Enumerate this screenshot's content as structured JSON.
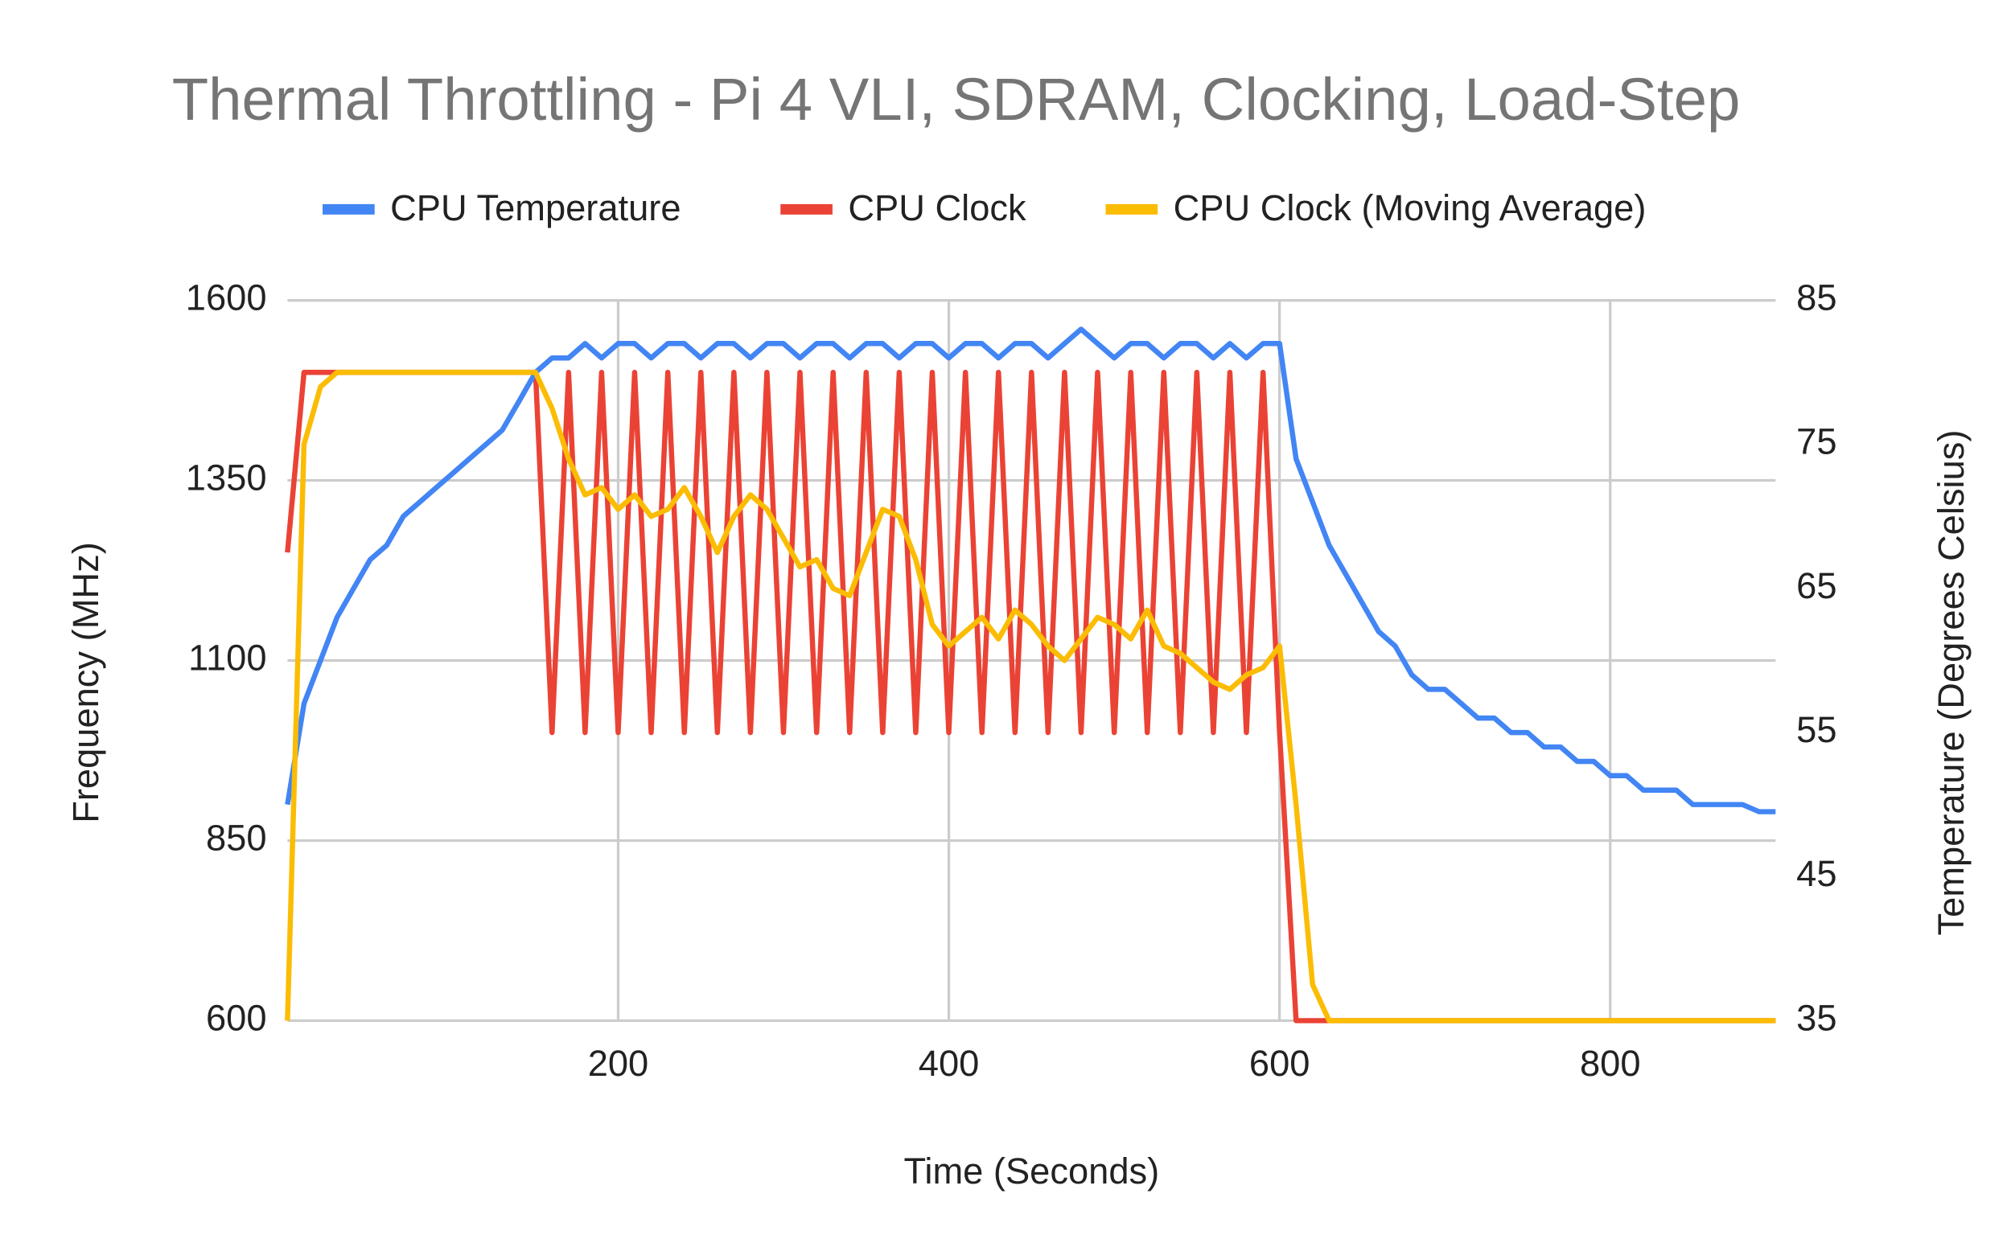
{
  "chart_data": {
    "type": "line",
    "title": "Thermal Throttling - Pi 4 VLI, SDRAM, Clocking, Load-Step",
    "xlabel": "Time (Seconds)",
    "ylabel": "Frequency (MHz)",
    "y2label": "Temperature (Degrees Celsius)",
    "xlim": [
      0,
      900
    ],
    "xticks": [
      200,
      400,
      600,
      800
    ],
    "ylim": [
      600,
      1600
    ],
    "yticks": [
      600,
      850,
      1100,
      1350,
      1600
    ],
    "y2lim": [
      35,
      85
    ],
    "y2ticks": [
      35,
      45,
      55,
      65,
      75,
      85
    ],
    "grid": true,
    "legend": "top",
    "x": [
      0,
      10,
      20,
      30,
      40,
      50,
      60,
      70,
      80,
      90,
      100,
      110,
      120,
      130,
      140,
      150,
      160,
      170,
      180,
      190,
      200,
      210,
      220,
      230,
      240,
      250,
      260,
      270,
      280,
      290,
      300,
      310,
      320,
      330,
      340,
      350,
      360,
      370,
      380,
      390,
      400,
      410,
      420,
      430,
      440,
      450,
      460,
      470,
      480,
      490,
      500,
      510,
      520,
      530,
      540,
      550,
      560,
      570,
      580,
      590,
      600,
      610,
      620,
      630,
      640,
      650,
      660,
      670,
      680,
      690,
      700,
      710,
      720,
      730,
      740,
      750,
      760,
      770,
      780,
      790,
      800,
      810,
      820,
      830,
      840,
      850,
      860,
      870,
      880,
      890,
      900
    ],
    "series": [
      {
        "name": "CPU Temperature",
        "color": "#4285f4",
        "axis": "y2",
        "values": [
          50,
          57,
          60,
          63,
          65,
          67,
          68,
          70,
          71,
          72,
          73,
          74,
          75,
          76,
          78,
          80,
          81,
          81,
          82,
          81,
          82,
          82,
          81,
          82,
          82,
          81,
          82,
          82,
          81,
          82,
          82,
          81,
          82,
          82,
          81,
          82,
          82,
          81,
          82,
          82,
          81,
          82,
          82,
          81,
          82,
          82,
          81,
          82,
          83,
          82,
          81,
          82,
          82,
          81,
          82,
          82,
          81,
          82,
          81,
          82,
          82,
          74,
          71,
          68,
          66,
          64,
          62,
          61,
          59,
          58,
          58,
          57,
          56,
          56,
          55,
          55,
          54,
          54,
          53,
          53,
          52,
          52,
          51,
          51,
          51,
          50,
          50,
          50,
          50,
          49.5,
          49.5
        ]
      },
      {
        "name": "CPU Clock",
        "color": "#ea4335",
        "values": [
          1250,
          1500,
          1500,
          1500,
          1500,
          1500,
          1500,
          1500,
          1500,
          1500,
          1500,
          1500,
          1500,
          1500,
          1500,
          1500,
          1000,
          1500,
          1000,
          1500,
          1000,
          1500,
          1000,
          1500,
          1000,
          1500,
          1000,
          1500,
          1000,
          1500,
          1000,
          1500,
          1000,
          1500,
          1000,
          1500,
          1000,
          1500,
          1000,
          1500,
          1000,
          1500,
          1000,
          1500,
          1000,
          1500,
          1000,
          1500,
          1000,
          1500,
          1000,
          1500,
          1000,
          1500,
          1000,
          1500,
          1000,
          1500,
          1000,
          1500,
          1000,
          600,
          600,
          600,
          600,
          600,
          600,
          600,
          600,
          600,
          600,
          600,
          600,
          600,
          600,
          600,
          600,
          600,
          600,
          600,
          600,
          600,
          600,
          600,
          600,
          600,
          600,
          600,
          600,
          600,
          600
        ]
      },
      {
        "name": "CPU Clock (Moving Average)",
        "color": "#fbbc04",
        "values": [
          600,
          1400,
          1480,
          1500,
          1500,
          1500,
          1500,
          1500,
          1500,
          1500,
          1500,
          1500,
          1500,
          1500,
          1500,
          1500,
          1450,
          1380,
          1330,
          1340,
          1310,
          1330,
          1300,
          1310,
          1340,
          1300,
          1250,
          1300,
          1330,
          1310,
          1270,
          1230,
          1240,
          1200,
          1190,
          1250,
          1310,
          1300,
          1240,
          1150,
          1120,
          1140,
          1160,
          1130,
          1170,
          1150,
          1120,
          1100,
          1130,
          1160,
          1150,
          1130,
          1170,
          1120,
          1110,
          1090,
          1070,
          1060,
          1080,
          1090,
          1120,
          900,
          650,
          600,
          600,
          600,
          600,
          600,
          600,
          600,
          600,
          600,
          600,
          600,
          600,
          600,
          600,
          600,
          600,
          600,
          600,
          600,
          600,
          600,
          600,
          600,
          600,
          600,
          600,
          600,
          600
        ]
      }
    ]
  }
}
